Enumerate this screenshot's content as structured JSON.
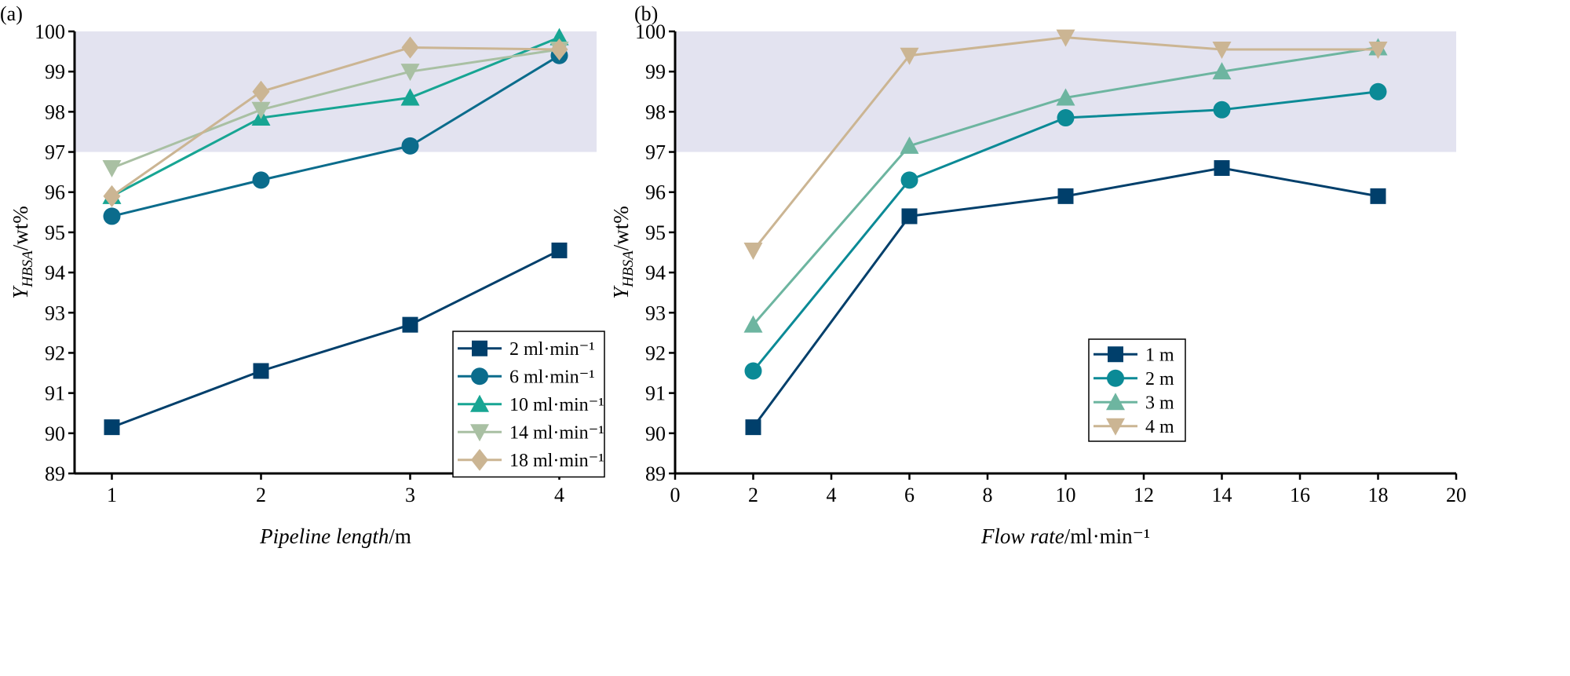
{
  "chart_data": [
    {
      "type": "line",
      "panel_label": "(a)",
      "xlabel": {
        "italic": "Pipeline length",
        "unit": "/m"
      },
      "ylabel": {
        "symbol": "Y",
        "subscript": "HBSA",
        "unit": "/wt%"
      },
      "x": [
        1,
        2,
        3,
        4
      ],
      "xticks": [
        1,
        2,
        3,
        4
      ],
      "xlim": [
        0.75,
        4.25
      ],
      "ylim": [
        89,
        100
      ],
      "yticks": [
        89,
        90,
        91,
        92,
        93,
        94,
        95,
        96,
        97,
        98,
        99,
        100
      ],
      "shaded_band": [
        97,
        100
      ],
      "shade_color": "#e3e3f0",
      "grid": false,
      "legend_position": "bottom-right",
      "series": [
        {
          "name": "2 ml·min⁻¹",
          "marker": "square",
          "color": "#003f6b",
          "values": [
            90.15,
            91.55,
            92.7,
            94.55
          ]
        },
        {
          "name": "6 ml·min⁻¹",
          "marker": "circle",
          "color": "#0b6c8c",
          "values": [
            95.4,
            96.3,
            97.15,
            99.4
          ]
        },
        {
          "name": "10 ml·min⁻¹",
          "marker": "triangle-up",
          "color": "#17a593",
          "values": [
            95.9,
            97.85,
            98.35,
            99.85
          ]
        },
        {
          "name": "14 ml·min⁻¹",
          "marker": "triangle-down",
          "color": "#a9c0a3",
          "values": [
            96.6,
            98.05,
            99.0,
            99.55
          ]
        },
        {
          "name": "18 ml·min⁻¹",
          "marker": "diamond",
          "color": "#cbb593",
          "values": [
            95.9,
            98.5,
            99.6,
            99.55
          ]
        }
      ]
    },
    {
      "type": "line",
      "panel_label": "(b)",
      "xlabel": {
        "italic": "Flow rate",
        "unit": "/ml·min⁻¹"
      },
      "ylabel": {
        "symbol": "Y",
        "subscript": "HBSA",
        "unit": "/wt%"
      },
      "x": [
        2,
        6,
        10,
        14,
        18
      ],
      "xticks": [
        0,
        2,
        4,
        6,
        8,
        10,
        12,
        14,
        16,
        18,
        20
      ],
      "xlim": [
        0,
        20
      ],
      "ylim": [
        89,
        100
      ],
      "yticks": [
        89,
        90,
        91,
        92,
        93,
        94,
        95,
        96,
        97,
        98,
        99,
        100
      ],
      "shaded_band": [
        97,
        100
      ],
      "shade_color": "#e3e3f0",
      "grid": false,
      "legend_position": "bottom-right",
      "series": [
        {
          "name": "1 m",
          "marker": "square",
          "color": "#003f6b",
          "values": [
            90.15,
            95.4,
            95.9,
            96.6,
            95.9
          ]
        },
        {
          "name": "2 m",
          "marker": "circle",
          "color": "#0b8a96",
          "values": [
            91.55,
            96.3,
            97.85,
            98.05,
            98.5
          ]
        },
        {
          "name": "3 m",
          "marker": "triangle-up",
          "color": "#6db5a0",
          "values": [
            92.7,
            97.15,
            98.35,
            99.0,
            99.6
          ]
        },
        {
          "name": "4 m",
          "marker": "triangle-down",
          "color": "#cbb593",
          "values": [
            94.55,
            99.4,
            99.85,
            99.55,
            99.55
          ]
        }
      ]
    }
  ]
}
